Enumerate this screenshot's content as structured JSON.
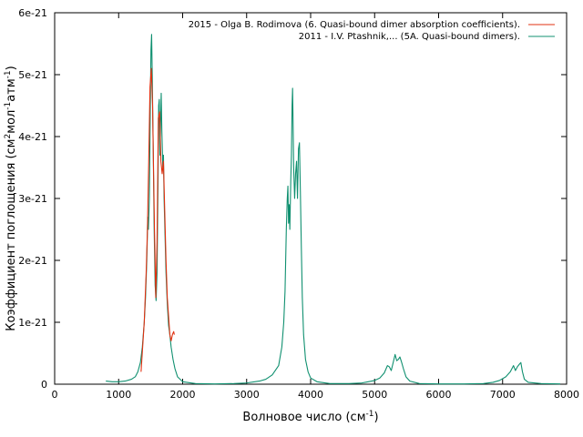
{
  "chart_data": {
    "type": "line",
    "xlabel": {
      "prefix": "Волновое число (см",
      "sup": "-1",
      "suffix": ")"
    },
    "ylabel": {
      "parts": [
        {
          "t": "Коэффициент поглощения (см"
        },
        {
          "t": "2",
          "sup": true
        },
        {
          "t": "мол"
        },
        {
          "t": "-1",
          "sup": true
        },
        {
          "t": "атм"
        },
        {
          "t": "-1",
          "sup": true
        },
        {
          "t": ")"
        }
      ]
    },
    "xlim": [
      0,
      8000
    ],
    "ylim": [
      0,
      6e-21
    ],
    "xticks": [
      0,
      1000,
      2000,
      3000,
      4000,
      5000,
      6000,
      7000,
      8000
    ],
    "xtick_labels": [
      "0",
      "1000",
      "2000",
      "3000",
      "4000",
      "5000",
      "6000",
      "7000",
      "8000"
    ],
    "yticks": [
      0,
      1e-21,
      2e-21,
      3e-21,
      4e-21,
      5e-21,
      6e-21
    ],
    "ytick_labels": [
      "0",
      "1e-21",
      "2e-21",
      "3e-21",
      "4e-21",
      "5e-21",
      "6e-21"
    ],
    "grid": false,
    "legend_position": "top-right",
    "series": [
      {
        "name": "2015 - Olga B. Rodimova (6. Quasi-bound dimer absorption coefficients).",
        "color": "#e03010",
        "points": [
          [
            1350,
            2e-22
          ],
          [
            1400,
            1e-21
          ],
          [
            1430,
            1.8e-21
          ],
          [
            1450,
            2.5e-21
          ],
          [
            1470,
            3.6e-21
          ],
          [
            1490,
            4.8e-21
          ],
          [
            1510,
            5.1e-21
          ],
          [
            1530,
            4.5e-21
          ],
          [
            1560,
            2.5e-21
          ],
          [
            1580,
            1.4e-21
          ],
          [
            1600,
            2.3e-21
          ],
          [
            1620,
            4.3e-21
          ],
          [
            1640,
            4.4e-21
          ],
          [
            1660,
            3.6e-21
          ],
          [
            1680,
            3.4e-21
          ],
          [
            1700,
            3.6e-21
          ],
          [
            1720,
            2.8e-21
          ],
          [
            1740,
            2e-21
          ],
          [
            1760,
            1.4e-21
          ],
          [
            1780,
            1.1e-21
          ],
          [
            1800,
            8e-22
          ],
          [
            1820,
            7e-22
          ],
          [
            1840,
            8e-22
          ],
          [
            1860,
            8.5e-22
          ],
          [
            1870,
            8e-22
          ]
        ]
      },
      {
        "name": "2011 - I.V. Ptashnik,... (5A. Quasi-bound dimers).",
        "color": "#109070",
        "points": [
          [
            800,
            5e-23
          ],
          [
            900,
            4e-23
          ],
          [
            1000,
            4e-23
          ],
          [
            1100,
            5e-23
          ],
          [
            1200,
            8e-23
          ],
          [
            1260,
            1.2e-22
          ],
          [
            1300,
            2e-22
          ],
          [
            1340,
            3.5e-22
          ],
          [
            1370,
            6e-22
          ],
          [
            1400,
            1e-21
          ],
          [
            1420,
            1.4e-21
          ],
          [
            1440,
            2e-21
          ],
          [
            1455,
            2.7e-21
          ],
          [
            1465,
            2.5e-21
          ],
          [
            1480,
            3e-21
          ],
          [
            1495,
            4.5e-21
          ],
          [
            1505,
            5.4e-21
          ],
          [
            1515,
            5.65e-21
          ],
          [
            1525,
            5e-21
          ],
          [
            1540,
            3.8e-21
          ],
          [
            1555,
            2.5e-21
          ],
          [
            1570,
            1.6e-21
          ],
          [
            1585,
            1.35e-21
          ],
          [
            1600,
            1.8e-21
          ],
          [
            1615,
            3.2e-21
          ],
          [
            1625,
            4.5e-21
          ],
          [
            1635,
            4.6e-21
          ],
          [
            1645,
            3.7e-21
          ],
          [
            1655,
            4.2e-21
          ],
          [
            1665,
            4.7e-21
          ],
          [
            1675,
            4.1e-21
          ],
          [
            1690,
            3.5e-21
          ],
          [
            1700,
            3.7e-21
          ],
          [
            1710,
            3e-21
          ],
          [
            1725,
            2.4e-21
          ],
          [
            1740,
            1.8e-21
          ],
          [
            1760,
            1.3e-21
          ],
          [
            1780,
            9.5e-22
          ],
          [
            1800,
            8e-22
          ],
          [
            1820,
            6e-22
          ],
          [
            1850,
            4e-22
          ],
          [
            1880,
            2.5e-22
          ],
          [
            1920,
            1.2e-22
          ],
          [
            2000,
            4e-23
          ],
          [
            2200,
            1e-23
          ],
          [
            2500,
            5e-24
          ],
          [
            2800,
            1e-23
          ],
          [
            3000,
            2e-23
          ],
          [
            3200,
            5e-23
          ],
          [
            3300,
            8e-23
          ],
          [
            3400,
            1.5e-22
          ],
          [
            3500,
            3e-22
          ],
          [
            3550,
            6e-22
          ],
          [
            3580,
            1e-21
          ],
          [
            3600,
            1.5e-21
          ],
          [
            3620,
            2.5e-21
          ],
          [
            3635,
            3e-21
          ],
          [
            3645,
            3.2e-21
          ],
          [
            3655,
            2.6e-21
          ],
          [
            3665,
            2.9e-21
          ],
          [
            3675,
            2.5e-21
          ],
          [
            3690,
            3.3e-21
          ],
          [
            3700,
            3.7e-21
          ],
          [
            3710,
            4.5e-21
          ],
          [
            3718,
            4.78e-21
          ],
          [
            3725,
            4.3e-21
          ],
          [
            3735,
            3.5e-21
          ],
          [
            3750,
            3e-21
          ],
          [
            3765,
            3.4e-21
          ],
          [
            3780,
            3.6e-21
          ],
          [
            3795,
            3e-21
          ],
          [
            3810,
            3.8e-21
          ],
          [
            3825,
            3.9e-21
          ],
          [
            3840,
            3.1e-21
          ],
          [
            3855,
            2.2e-21
          ],
          [
            3870,
            1.4e-21
          ],
          [
            3890,
            8e-22
          ],
          [
            3920,
            4e-22
          ],
          [
            3960,
            2e-22
          ],
          [
            4000,
            1e-22
          ],
          [
            4100,
            4e-23
          ],
          [
            4300,
            1e-23
          ],
          [
            4600,
            1e-23
          ],
          [
            4800,
            2e-23
          ],
          [
            4900,
            4e-23
          ],
          [
            5000,
            6e-23
          ],
          [
            5080,
            1e-22
          ],
          [
            5150,
            1.8e-22
          ],
          [
            5200,
            3e-22
          ],
          [
            5230,
            2.8e-22
          ],
          [
            5260,
            2.2e-22
          ],
          [
            5290,
            3.5e-22
          ],
          [
            5320,
            4.8e-22
          ],
          [
            5345,
            3.8e-22
          ],
          [
            5370,
            4e-22
          ],
          [
            5395,
            4.4e-22
          ],
          [
            5420,
            3.6e-22
          ],
          [
            5450,
            2.5e-22
          ],
          [
            5490,
            1.2e-22
          ],
          [
            5550,
            5e-23
          ],
          [
            5700,
            1e-23
          ],
          [
            6000,
            5e-24
          ],
          [
            6400,
            5e-24
          ],
          [
            6700,
            1e-23
          ],
          [
            6850,
            3e-23
          ],
          [
            6950,
            6e-23
          ],
          [
            7050,
            1.2e-22
          ],
          [
            7120,
            2e-22
          ],
          [
            7170,
            3e-22
          ],
          [
            7200,
            2.2e-22
          ],
          [
            7230,
            2.8e-22
          ],
          [
            7260,
            3.2e-22
          ],
          [
            7285,
            3.5e-22
          ],
          [
            7310,
            2e-22
          ],
          [
            7340,
            8e-23
          ],
          [
            7400,
            3e-23
          ],
          [
            7600,
            1e-23
          ],
          [
            7900,
            5e-24
          ]
        ]
      }
    ]
  }
}
